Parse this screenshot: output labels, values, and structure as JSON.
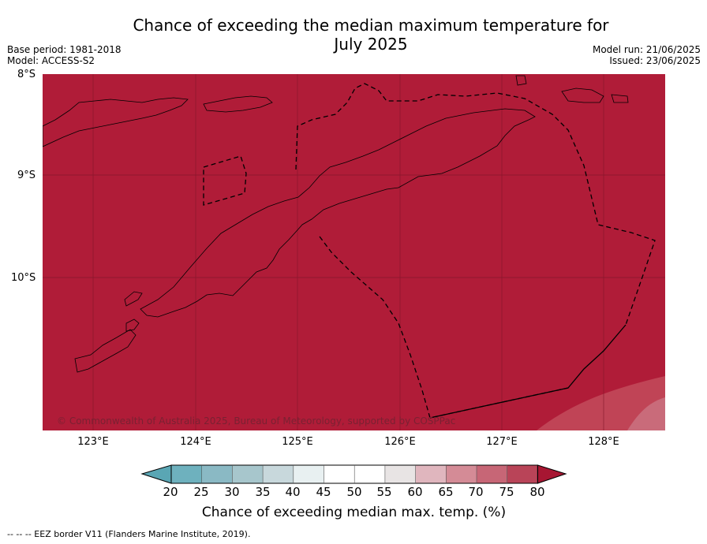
{
  "title_line1": "Chance of exceeding the median maximum temperature for",
  "title_line2": "July 2025",
  "base_period": "Base period: 1981-2018",
  "model": "Model: ACCESS-S2",
  "model_run": "Model run: 21/06/2025",
  "issued": "Issued: 23/06/2025",
  "copyright": "© Commonwealth of Australia 2025, Bureau of Meteorology, supported by COSPPac",
  "footnote": "--  --  -- EEZ border V11 (Flanders Marine Institute, 2019).",
  "map": {
    "latitude_labels": [
      "8°S",
      "9°S",
      "10°S"
    ],
    "longitude_labels": [
      "123°E",
      "124°E",
      "125°E",
      "126°E",
      "127°E",
      "128°E"
    ],
    "background_color": "#b01c38"
  },
  "colorbar": {
    "title": "Chance of exceeding median max. temp. (%)",
    "ticks": [
      "20",
      "25",
      "30",
      "35",
      "40",
      "45",
      "50",
      "55",
      "60",
      "65",
      "70",
      "75",
      "80"
    ],
    "colors": [
      "#5aa6b4",
      "#6eb1be",
      "#8ab9c4",
      "#a7c6cc",
      "#c8d8dc",
      "#e8f0f1",
      "#ffffff",
      "#ffffff",
      "#e8e4e4",
      "#e0b6be",
      "#d48b96",
      "#c76676",
      "#b94458",
      "#a71632"
    ]
  }
}
